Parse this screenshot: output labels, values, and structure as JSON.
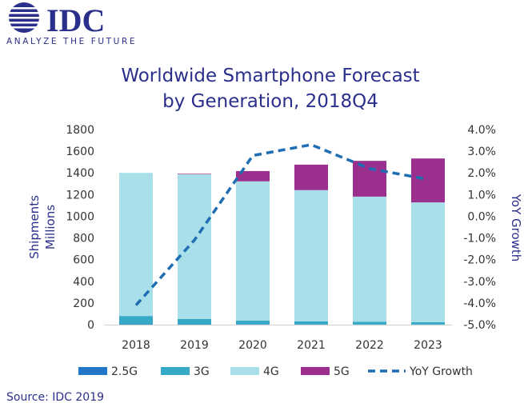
{
  "logo": {
    "wordmark": "IDC",
    "tagline": "ANALYZE THE FUTURE"
  },
  "source": "Source: IDC 2019",
  "colors": {
    "c25g": "#2176c5",
    "c3g": "#34aac6",
    "c4g": "#a9dfe8",
    "c5g": "#9b2f8e",
    "yoy": "#1f6db3",
    "title": "#2b2f8c"
  },
  "chart_data": {
    "type": "bar",
    "stacked": true,
    "title": [
      "Worldwide Smartphone Forecast",
      "by Generation, 2018Q4"
    ],
    "categories": [
      "2018",
      "2019",
      "2020",
      "2021",
      "2022",
      "2023"
    ],
    "ylabel": [
      "Shipments",
      "Millions"
    ],
    "y2label": "YoY Growth",
    "ylim": [
      0,
      1800
    ],
    "y_ticks": [
      "0",
      "200",
      "400",
      "600",
      "800",
      "1000",
      "1200",
      "1400",
      "1600",
      "1800"
    ],
    "y2lim": [
      -5,
      4
    ],
    "y2_ticks": [
      "-5.0%",
      "-4.0%",
      "-3.0%",
      "-2.0%",
      "-1.0%",
      "0.0%",
      "1.0%",
      "2.0%",
      "3.0%",
      "4.0%"
    ],
    "series": [
      {
        "name": "2.5G",
        "values": [
          5,
          3,
          2,
          1,
          1,
          1
        ]
      },
      {
        "name": "3G",
        "values": [
          75,
          50,
          35,
          30,
          25,
          22
        ]
      },
      {
        "name": "4G",
        "values": [
          1320,
          1335,
          1285,
          1210,
          1155,
          1105
        ]
      },
      {
        "name": "5G",
        "values": [
          0,
          5,
          95,
          235,
          330,
          405
        ]
      }
    ],
    "line_series": {
      "name": "YoY Growth",
      "axis": "right",
      "values": [
        -4.1,
        -1.1,
        2.8,
        3.3,
        2.2,
        1.7
      ]
    },
    "legend_position": "bottom",
    "grid": false
  }
}
